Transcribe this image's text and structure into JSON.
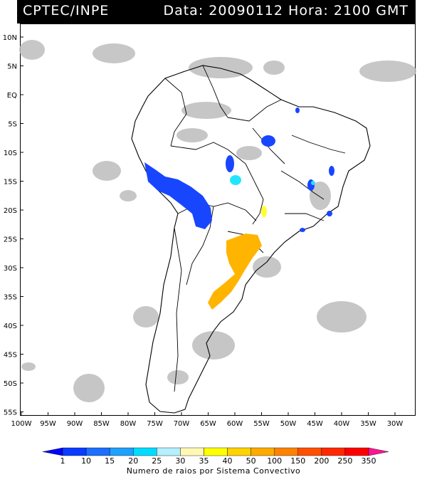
{
  "header": {
    "org": "CPTEC/INPE",
    "date_label": "Data:",
    "date_value": "20090112",
    "hour_label": "Hora:",
    "hour_value": "2100 GMT"
  },
  "latitude_ticks": [
    "10N",
    "5N",
    "EQ",
    "5S",
    "10S",
    "15S",
    "20S",
    "25S",
    "30S",
    "35S",
    "40S",
    "45S",
    "50S",
    "55S"
  ],
  "longitude_ticks": [
    "100W",
    "95W",
    "90W",
    "85W",
    "80W",
    "75W",
    "70W",
    "65W",
    "60W",
    "55W",
    "50W",
    "45W",
    "40W",
    "35W",
    "30W"
  ],
  "colorbar": {
    "title": "Numero de raios por Sistema Convectivo",
    "labels": [
      "1",
      "10",
      "15",
      "20",
      "25",
      "30",
      "35",
      "40",
      "50",
      "100",
      "150",
      "200",
      "250",
      "350"
    ],
    "colors": [
      "#0000ff",
      "#0a3cff",
      "#1e6eff",
      "#1fa0ff",
      "#00dcff",
      "#b4f0ff",
      "#fff8b4",
      "#ffff00",
      "#ffd200",
      "#ffaa00",
      "#ff8200",
      "#ff5000",
      "#ff2800",
      "#ff0000",
      "#ff1493"
    ]
  },
  "colors": {
    "cloud_gray": "#bdbdbd",
    "blue_systems": "#1846ff",
    "cyan_systems": "#22e6ff",
    "orange_systems": "#ffb400",
    "yellow_systems": "#ffff33"
  }
}
